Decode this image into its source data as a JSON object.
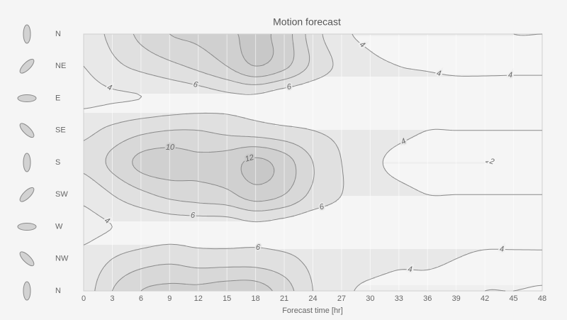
{
  "chart_data": {
    "type": "contour",
    "title": "Motion forecast",
    "x_label": "Forecast time [hr]",
    "categories": [
      "N",
      "NE",
      "E",
      "SE",
      "S",
      "SW",
      "W",
      "NW",
      "N"
    ],
    "x": [
      0,
      3,
      6,
      9,
      12,
      15,
      18,
      21,
      24,
      27,
      30,
      33,
      36,
      39,
      42,
      45,
      48
    ],
    "xlim": [
      0,
      48
    ],
    "xticks": [
      0,
      3,
      6,
      9,
      12,
      15,
      18,
      21,
      24,
      27,
      30,
      33,
      36,
      39,
      42,
      45,
      48
    ],
    "levels": [
      2,
      4,
      6,
      8,
      10,
      12
    ],
    "z": [
      [
        5,
        6.5,
        8.5,
        10,
        10.5,
        11.5,
        12.5,
        11,
        7,
        4.5,
        3.5,
        3,
        3,
        2.5,
        2.5,
        2,
        2
      ],
      [
        4,
        5.5,
        6.5,
        7.5,
        8.5,
        10,
        12,
        10.5,
        7.5,
        5.5,
        4.5,
        4,
        3.8,
        3.5,
        3.5,
        3.5,
        3.5
      ],
      [
        3.5,
        3.8,
        4,
        4.5,
        5,
        5.5,
        5.5,
        4.5,
        4.2,
        4.5,
        5,
        5,
        5,
        5,
        5,
        5,
        5
      ],
      [
        5.5,
        6.5,
        7.5,
        8,
        8,
        7.5,
        7,
        6.5,
        6,
        5.5,
        5,
        4.5,
        4,
        4,
        4,
        4,
        4
      ],
      [
        6.5,
        8.5,
        10.5,
        11,
        10.5,
        11,
        12.5,
        11,
        8,
        6,
        4.5,
        3.5,
        3,
        2.5,
        2,
        2.2,
        2.5
      ],
      [
        4.5,
        6,
        7.5,
        8.5,
        9,
        9.5,
        11,
        10,
        7.5,
        6,
        5,
        4.5,
        4,
        4,
        4,
        4,
        4
      ],
      [
        3.5,
        4,
        4.5,
        5,
        5,
        5,
        5.5,
        5,
        4.5,
        4.8,
        5,
        5,
        5,
        5,
        5,
        5,
        5
      ],
      [
        4.5,
        6,
        7,
        7.5,
        7,
        7,
        7,
        6.5,
        5.5,
        5,
        5,
        4.5,
        4.5,
        4,
        3.5,
        3.5,
        3.5
      ],
      [
        5,
        8,
        10,
        10.5,
        10.5,
        11,
        11,
        9,
        6,
        4.5,
        3.5,
        3,
        3,
        2.5,
        2,
        2,
        1.8
      ]
    ],
    "fill_colors": [
      "#f6f6f6",
      "#efefef",
      "#e8e8e8",
      "#e0e0e0",
      "#d8d8d8",
      "#d0d0d0",
      "#c8c8c8"
    ],
    "line_color": "#8a8a8a",
    "grid": true
  }
}
